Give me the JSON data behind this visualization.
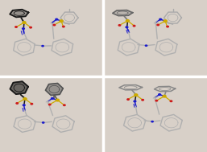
{
  "figsize": [
    2.57,
    1.89
  ],
  "dpi": 100,
  "bg_color": "#d8d0c8",
  "panel_bg": "#d8d0c8",
  "border_color": "#ffffff",
  "border_width": 1.5,
  "panels": 4,
  "colors": {
    "C_dark": "#1a1a1a",
    "C_med": "#555555",
    "C_light": "#aaaaaa",
    "C_bond": "#888888",
    "C_wire": "#b0b0b0",
    "N_blue": "#1a1acc",
    "S_yellow": "#ccaa00",
    "O_red": "#cc1a1a",
    "bg": "#d8d0c8"
  }
}
